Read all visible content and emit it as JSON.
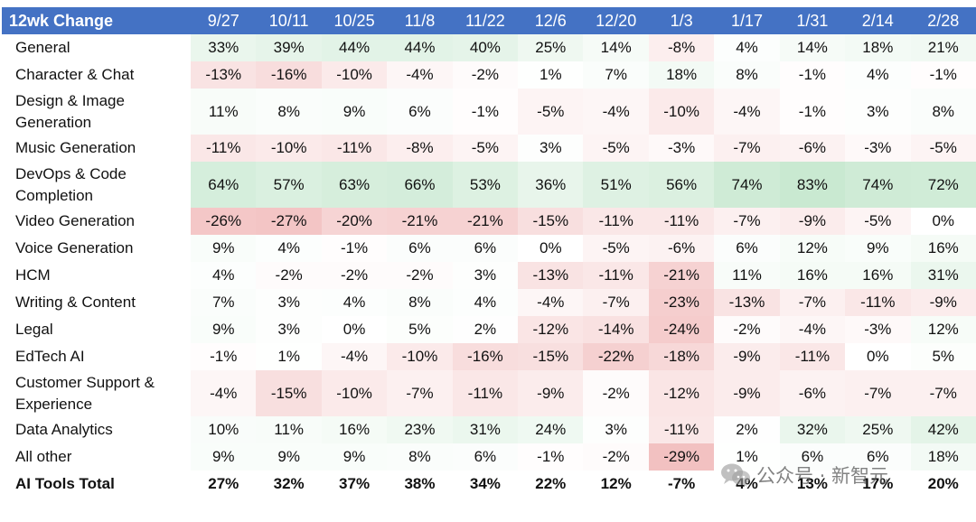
{
  "chart_data": {
    "type": "table",
    "corner_header": "12wk Change",
    "columns": [
      "9/27",
      "10/11",
      "10/25",
      "11/8",
      "11/22",
      "12/6",
      "12/20",
      "1/3",
      "1/17",
      "1/31",
      "2/14",
      "2/28"
    ],
    "rows": [
      {
        "label": "General",
        "values": [
          33,
          39,
          44,
          44,
          40,
          25,
          14,
          -8,
          4,
          14,
          18,
          21
        ]
      },
      {
        "label": "Character & Chat",
        "values": [
          -13,
          -16,
          -10,
          -4,
          -2,
          1,
          7,
          18,
          8,
          -1,
          4,
          -1
        ]
      },
      {
        "label": "Design & Image Generation",
        "values": [
          11,
          8,
          9,
          6,
          -1,
          -5,
          -4,
          -10,
          -4,
          -1,
          3,
          8
        ]
      },
      {
        "label": "Music Generation",
        "values": [
          -11,
          -10,
          -11,
          -8,
          -5,
          3,
          -5,
          -3,
          -7,
          -6,
          -3,
          -5
        ]
      },
      {
        "label": "DevOps & Code Completion",
        "values": [
          64,
          57,
          63,
          66,
          53,
          36,
          51,
          56,
          74,
          83,
          74,
          72
        ]
      },
      {
        "label": "Video Generation",
        "values": [
          -26,
          -27,
          -20,
          -21,
          -21,
          -15,
          -11,
          -11,
          -7,
          -9,
          -5,
          0
        ]
      },
      {
        "label": "Voice Generation",
        "values": [
          9,
          4,
          -1,
          6,
          6,
          0,
          -5,
          -6,
          6,
          12,
          9,
          16
        ]
      },
      {
        "label": "HCM",
        "values": [
          4,
          -2,
          -2,
          -2,
          3,
          -13,
          -11,
          -21,
          11,
          16,
          16,
          31
        ]
      },
      {
        "label": "Writing & Content",
        "values": [
          7,
          3,
          4,
          8,
          4,
          -4,
          -7,
          -23,
          -13,
          -7,
          -11,
          -9
        ]
      },
      {
        "label": "Legal",
        "values": [
          9,
          3,
          0,
          5,
          2,
          -12,
          -14,
          -24,
          -2,
          -4,
          -3,
          12
        ]
      },
      {
        "label": "EdTech AI",
        "values": [
          -1,
          1,
          -4,
          -10,
          -16,
          -15,
          -22,
          -18,
          -9,
          -11,
          0,
          5
        ]
      },
      {
        "label": "Customer Support & Experience",
        "values": [
          -4,
          -15,
          -10,
          -7,
          -11,
          -9,
          -2,
          -12,
          -9,
          -6,
          -7,
          -7
        ]
      },
      {
        "label": "Data Analytics",
        "values": [
          10,
          11,
          16,
          23,
          31,
          24,
          3,
          -11,
          2,
          32,
          25,
          42
        ]
      },
      {
        "label": "All other",
        "values": [
          9,
          9,
          9,
          8,
          6,
          -1,
          -2,
          -29,
          1,
          6,
          6,
          18
        ]
      },
      {
        "label": "AI Tools Total",
        "values": [
          27,
          32,
          37,
          38,
          34,
          22,
          12,
          -7,
          4,
          13,
          17,
          20
        ],
        "bold": true
      }
    ],
    "value_suffix": "%"
  },
  "colors": {
    "header_bg": "#4472c4",
    "header_text": "#ffffff",
    "positive_tint": "#63be7b",
    "negative_tint": "#e06666",
    "neutral": "#ffffff"
  },
  "watermark": {
    "text": "公众号 · 新智元",
    "icon": "wechat-icon"
  }
}
